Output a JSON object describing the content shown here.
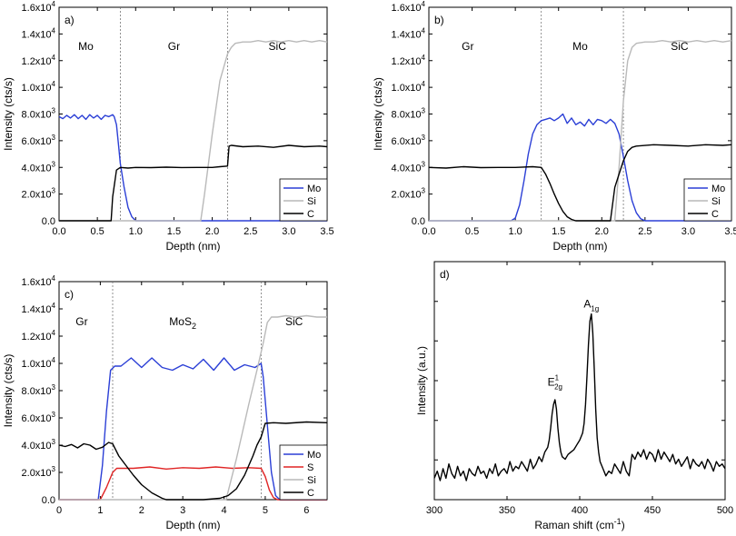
{
  "figure": {
    "width": 810,
    "height": 590
  },
  "chart_data": [
    {
      "id": "a",
      "type": "line",
      "panel_label": "a)",
      "xlabel": "Depth (nm)",
      "ylabel": "Intensity (cts/s)",
      "xlim": [
        0,
        3.5
      ],
      "ylim": [
        0,
        16000
      ],
      "xticks": [
        0,
        0.5,
        1,
        1.5,
        2,
        2.5,
        3,
        3.5
      ],
      "xtick_labels": [
        "0.0",
        "0.5",
        "1.0",
        "1.5",
        "2.0",
        "2.5",
        "3.0",
        "3.5"
      ],
      "yticks": [
        0,
        2000,
        4000,
        6000,
        8000,
        10000,
        12000,
        14000,
        16000
      ],
      "ytick_mant": [
        "0.0",
        "2.0x10",
        "4.0x10",
        "6.0x10",
        "8.0x10",
        "1.0x10",
        "1.2x10",
        "1.4x10",
        "1.6x10"
      ],
      "ytick_exp": [
        "",
        "3",
        "3",
        "3",
        "3",
        "4",
        "4",
        "4",
        "4"
      ],
      "vlines": [
        0.8,
        2.2
      ],
      "regions": [
        {
          "label": "Mo",
          "x": 0.35,
          "y": 12800
        },
        {
          "label": "Gr",
          "x": 1.5,
          "y": 12800
        },
        {
          "label": "SiC",
          "x": 2.85,
          "y": 12800
        }
      ],
      "legend": {
        "position": "bottom-right",
        "entries": [
          "Mo",
          "Si",
          "C"
        ]
      },
      "series": [
        {
          "name": "Mo",
          "color": "#2b3fd6",
          "x": [
            0,
            0.05,
            0.1,
            0.15,
            0.2,
            0.25,
            0.3,
            0.35,
            0.4,
            0.45,
            0.5,
            0.55,
            0.6,
            0.65,
            0.7,
            0.72,
            0.75,
            0.78,
            0.8,
            0.85,
            0.9,
            0.95,
            1.0,
            1.05,
            3.5
          ],
          "y": [
            7800,
            7650,
            7900,
            7700,
            7950,
            7650,
            7900,
            7600,
            7950,
            7700,
            7900,
            7600,
            7900,
            7800,
            7950,
            7800,
            7200,
            5500,
            4300,
            2500,
            1000,
            300,
            0,
            0,
            0
          ]
        },
        {
          "name": "Si",
          "color": "#b9b9b9",
          "x": [
            0,
            1.85,
            1.9,
            2.0,
            2.1,
            2.2,
            2.25,
            2.3,
            2.4,
            2.5,
            2.6,
            2.7,
            2.8,
            2.9,
            3.0,
            3.1,
            3.2,
            3.3,
            3.4,
            3.5
          ],
          "y": [
            0,
            0,
            2000,
            6500,
            10500,
            12500,
            13000,
            13300,
            13400,
            13400,
            13500,
            13400,
            13500,
            13400,
            13500,
            13400,
            13500,
            13400,
            13500,
            13400
          ]
        },
        {
          "name": "C",
          "color": "#000000",
          "x": [
            0,
            0.68,
            0.7,
            0.75,
            0.8,
            0.9,
            1.0,
            1.2,
            1.4,
            1.6,
            1.8,
            2.0,
            2.1,
            2.2,
            2.22,
            2.25,
            2.4,
            2.6,
            2.8,
            3.0,
            3.2,
            3.4,
            3.5
          ],
          "y": [
            0,
            0,
            1800,
            3800,
            4000,
            3950,
            4000,
            3980,
            4020,
            3990,
            4000,
            4000,
            4050,
            4100,
            5600,
            5650,
            5550,
            5600,
            5500,
            5650,
            5550,
            5600,
            5550
          ]
        }
      ]
    },
    {
      "id": "b",
      "type": "line",
      "panel_label": "b)",
      "xlabel": "Depth (nm)",
      "ylabel": "Intensity (cts/s)",
      "xlim": [
        0,
        3.5
      ],
      "ylim": [
        0,
        16000
      ],
      "xticks": [
        0,
        0.5,
        1,
        1.5,
        2,
        2.5,
        3,
        3.5
      ],
      "xtick_labels": [
        "0.0",
        "0.5",
        "1.0",
        "1.5",
        "2.0",
        "2.5",
        "3.0",
        "3.5"
      ],
      "yticks": [
        0,
        2000,
        4000,
        6000,
        8000,
        10000,
        12000,
        14000,
        16000
      ],
      "ytick_mant": [
        "0.0",
        "2.0x10",
        "4.0x10",
        "6.0x10",
        "8.0x10",
        "1.0x10",
        "1.2x10",
        "1.4x10",
        "1.6x10"
      ],
      "ytick_exp": [
        "",
        "3",
        "3",
        "3",
        "3",
        "4",
        "4",
        "4",
        "4"
      ],
      "vlines": [
        1.3,
        2.25
      ],
      "regions": [
        {
          "label": "Gr",
          "x": 0.45,
          "y": 12800
        },
        {
          "label": "Mo",
          "x": 1.75,
          "y": 12800
        },
        {
          "label": "SiC",
          "x": 2.9,
          "y": 12800
        }
      ],
      "legend": {
        "position": "bottom-right",
        "entries": [
          "Mo",
          "Si",
          "C"
        ]
      },
      "series": [
        {
          "name": "Mo",
          "color": "#2b3fd6",
          "x": [
            0,
            0.95,
            1.0,
            1.05,
            1.1,
            1.15,
            1.2,
            1.25,
            1.3,
            1.35,
            1.4,
            1.45,
            1.5,
            1.55,
            1.6,
            1.65,
            1.7,
            1.75,
            1.8,
            1.85,
            1.9,
            1.95,
            2.0,
            2.05,
            2.1,
            2.15,
            2.2,
            2.25,
            2.3,
            2.35,
            2.4,
            2.45,
            2.5,
            2.55,
            3.5
          ],
          "y": [
            0,
            0,
            200,
            1200,
            3000,
            5000,
            6500,
            7200,
            7500,
            7600,
            7700,
            7500,
            7700,
            8000,
            7300,
            7700,
            7200,
            7400,
            7100,
            7600,
            7200,
            7600,
            7500,
            7300,
            7600,
            7300,
            6500,
            4800,
            3000,
            1500,
            600,
            150,
            0,
            0,
            0
          ]
        },
        {
          "name": "Si",
          "color": "#b9b9b9",
          "x": [
            0,
            2.15,
            2.2,
            2.25,
            2.3,
            2.35,
            2.4,
            2.5,
            2.6,
            2.7,
            2.8,
            2.9,
            3.0,
            3.1,
            3.2,
            3.3,
            3.4,
            3.5
          ],
          "y": [
            0,
            0,
            4000,
            9000,
            12000,
            13000,
            13300,
            13400,
            13400,
            13500,
            13400,
            13500,
            13400,
            13500,
            13400,
            13500,
            13400,
            13500
          ]
        },
        {
          "name": "C",
          "color": "#000000",
          "x": [
            0,
            0.2,
            0.4,
            0.6,
            0.8,
            1.0,
            1.2,
            1.3,
            1.35,
            1.4,
            1.45,
            1.5,
            1.55,
            1.6,
            1.65,
            1.7,
            1.75,
            2.0,
            2.1,
            2.15,
            2.2,
            2.25,
            2.3,
            2.35,
            2.4,
            2.6,
            2.8,
            3.0,
            3.2,
            3.4,
            3.5
          ],
          "y": [
            4000,
            3950,
            4050,
            3980,
            4000,
            4000,
            4050,
            4000,
            3500,
            2800,
            2000,
            1300,
            700,
            300,
            100,
            0,
            0,
            0,
            0,
            2500,
            3500,
            4500,
            5200,
            5500,
            5600,
            5700,
            5650,
            5600,
            5700,
            5650,
            5700
          ]
        }
      ]
    },
    {
      "id": "c",
      "type": "line",
      "panel_label": "c)",
      "xlabel": "Depth (nm)",
      "ylabel": "Intensity (cts/s)",
      "xlim": [
        0,
        6.5
      ],
      "ylim": [
        0,
        16000
      ],
      "xticks": [
        0,
        1,
        2,
        3,
        4,
        5,
        6
      ],
      "xtick_labels": [
        "0",
        "1",
        "2",
        "3",
        "4",
        "5",
        "6"
      ],
      "yticks": [
        0,
        2000,
        4000,
        6000,
        8000,
        10000,
        12000,
        14000,
        16000
      ],
      "ytick_mant": [
        "0.0",
        "2.0x10",
        "4.0x10",
        "6.0x10",
        "8.0x10",
        "1.0x10",
        "1.2x10",
        "1.4x10",
        "1.6x10"
      ],
      "ytick_exp": [
        "",
        "3",
        "3",
        "3",
        "3",
        "4",
        "4",
        "4",
        "4"
      ],
      "vlines": [
        1.3,
        4.9
      ],
      "regions": [
        {
          "label": "Gr",
          "x": 0.55,
          "y": 12800
        },
        {
          "label": "MoS",
          "sub": "2",
          "x": 3.0,
          "y": 12800
        },
        {
          "label": "SiC",
          "x": 5.7,
          "y": 12800
        }
      ],
      "legend": {
        "position": "bottom-right",
        "entries": [
          "Mo",
          "S",
          "Si",
          "C"
        ]
      },
      "series": [
        {
          "name": "Mo",
          "color": "#2b3fd6",
          "x": [
            0,
            0.95,
            1.05,
            1.15,
            1.25,
            1.35,
            1.5,
            1.75,
            2.0,
            2.25,
            2.5,
            2.75,
            3.0,
            3.25,
            3.5,
            3.75,
            4.0,
            4.25,
            4.5,
            4.75,
            4.9,
            4.95,
            5.05,
            5.15,
            5.25,
            5.35,
            6.5
          ],
          "y": [
            0,
            0,
            2500,
            6500,
            9500,
            9800,
            9800,
            10400,
            9700,
            10400,
            9700,
            9500,
            9900,
            9600,
            10300,
            9500,
            10400,
            9500,
            9900,
            9700,
            10000,
            9000,
            5500,
            2000,
            300,
            0,
            0
          ]
        },
        {
          "name": "S",
          "color": "#e02525",
          "x": [
            0,
            1.0,
            1.15,
            1.3,
            1.4,
            1.8,
            2.2,
            2.6,
            3.0,
            3.4,
            3.8,
            4.2,
            4.6,
            4.9,
            5.0,
            5.1,
            5.2,
            5.3,
            6.5
          ],
          "y": [
            0,
            0,
            900,
            2000,
            2300,
            2300,
            2400,
            2250,
            2350,
            2300,
            2400,
            2300,
            2350,
            2300,
            1700,
            700,
            150,
            0,
            0
          ]
        },
        {
          "name": "Si",
          "color": "#b9b9b9",
          "x": [
            0,
            4.05,
            4.3,
            4.6,
            4.8,
            4.95,
            5.05,
            5.15,
            5.3,
            5.5,
            5.75,
            6.0,
            6.25,
            6.5
          ],
          "y": [
            0,
            0,
            3000,
            7000,
            9500,
            11500,
            13000,
            13400,
            13400,
            13500,
            13400,
            13500,
            13400,
            13400
          ]
        },
        {
          "name": "C",
          "color": "#000000",
          "x": [
            0,
            0.15,
            0.3,
            0.45,
            0.6,
            0.75,
            0.9,
            1.05,
            1.2,
            1.3,
            1.45,
            1.6,
            1.8,
            2.0,
            2.25,
            2.5,
            2.6,
            3.5,
            3.9,
            4.1,
            4.3,
            4.5,
            4.7,
            4.8,
            4.9,
            5.0,
            5.2,
            5.5,
            6.0,
            6.5
          ],
          "y": [
            4000,
            3900,
            4050,
            3800,
            4100,
            4000,
            3700,
            3850,
            4200,
            4100,
            3200,
            2600,
            1800,
            1100,
            500,
            100,
            0,
            0,
            100,
            300,
            800,
            1800,
            3200,
            4000,
            4600,
            5600,
            5650,
            5600,
            5700,
            5650
          ]
        }
      ]
    },
    {
      "id": "d",
      "type": "line",
      "panel_label": "d)",
      "xlabel": "Raman shift (cm",
      "xlabel_sup": "-1",
      "xlabel_end": ")",
      "ylabel": "Intensity (a.u.)",
      "xlim": [
        300,
        500
      ],
      "ylim": [
        0,
        100
      ],
      "xticks": [
        300,
        350,
        400,
        450,
        500
      ],
      "xtick_labels": [
        "300",
        "350",
        "400",
        "450",
        "500"
      ],
      "yticks": [
        0,
        16.7,
        33.3,
        50,
        66.7,
        83.3,
        100
      ],
      "ytick_labels": [],
      "peaks": [
        {
          "label": "E",
          "sup": "1",
          "sub": "2g",
          "x": 383,
          "y": 44
        },
        {
          "label": "A",
          "sub": "1g",
          "x": 408,
          "y": 77
        }
      ],
      "series": [
        {
          "name": "Raman",
          "color": "#000000",
          "x": [
            300,
            302,
            304,
            306,
            308,
            310,
            312,
            314,
            316,
            318,
            320,
            322,
            324,
            326,
            328,
            330,
            332,
            334,
            336,
            338,
            340,
            342,
            344,
            346,
            348,
            350,
            352,
            354,
            356,
            358,
            360,
            362,
            364,
            366,
            368,
            370,
            372,
            374,
            376,
            378,
            379,
            380,
            381,
            382,
            383,
            384,
            385,
            386,
            387,
            388,
            390,
            392,
            394,
            396,
            398,
            400,
            402,
            403,
            404,
            405,
            406,
            407,
            408,
            409,
            410,
            411,
            412,
            413,
            414,
            416,
            418,
            420,
            422,
            424,
            426,
            428,
            430,
            432,
            434,
            436,
            438,
            440,
            442,
            444,
            446,
            448,
            450,
            452,
            454,
            456,
            458,
            460,
            462,
            464,
            466,
            468,
            470,
            472,
            474,
            476,
            478,
            480,
            482,
            484,
            486,
            488,
            490,
            492,
            494,
            496,
            498,
            500
          ],
          "y": [
            9,
            12,
            8,
            13,
            9,
            15,
            11,
            9,
            14,
            10,
            12,
            8,
            13,
            11,
            10,
            14,
            11,
            12,
            9,
            13,
            11,
            15,
            10,
            12,
            13,
            11,
            16,
            12,
            14,
            13,
            16,
            14,
            12,
            17,
            13,
            15,
            18,
            16,
            20,
            22,
            25,
            30,
            36,
            40,
            42,
            38,
            30,
            24,
            20,
            18,
            17,
            19,
            20,
            21,
            23,
            25,
            28,
            32,
            40,
            52,
            65,
            75,
            78,
            70,
            55,
            38,
            26,
            20,
            16,
            13,
            10,
            12,
            11,
            15,
            13,
            11,
            16,
            12,
            10,
            19,
            17,
            20,
            18,
            21,
            17,
            20,
            19,
            16,
            21,
            17,
            20,
            18,
            16,
            19,
            15,
            17,
            14,
            16,
            18,
            13,
            17,
            15,
            14,
            16,
            13,
            17,
            15,
            12,
            16,
            14,
            15,
            13
          ]
        }
      ]
    }
  ]
}
